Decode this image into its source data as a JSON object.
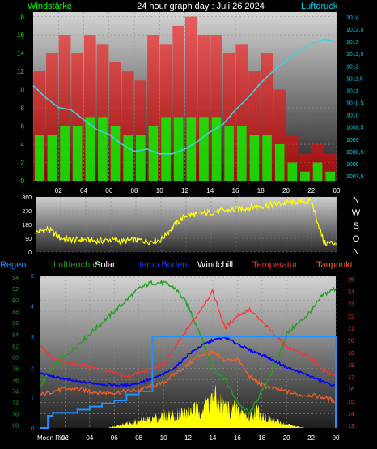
{
  "colors": {
    "wind_speed": "#00ff00",
    "wind_gust": "#ff0000",
    "pressure": "#40d0e0",
    "direction": "#ffff00",
    "humidity": "#20a020",
    "solar": "#ffff00",
    "temp_ground": "#0000ff",
    "windchill": "#ffffff",
    "temperature": "#ff3030",
    "dewpoint": "#ff6020",
    "rain": "#1e90ff",
    "panel_top": "#d0d0d0",
    "panel_bottom": "#202020"
  },
  "header": {
    "left_label": "Windstärke",
    "title": "24 hour graph day : Juli 26 2024",
    "right_label": "Luftdruck"
  },
  "compass": {
    "labels": [
      "N",
      "W",
      "S",
      "O",
      "N"
    ]
  },
  "legend": {
    "rain": "Regen",
    "humidity": "Luftfeuchte",
    "solar": "Solar",
    "temp_ground": "temp Boden",
    "windchill": "Windchill",
    "temperature": "Temperatur",
    "dewpoint": "Taupunkt"
  },
  "moon_label": "Moon Rise",
  "chart_data": [
    {
      "type": "bar",
      "name": "wind",
      "x_ticks": [
        "02",
        "04",
        "06",
        "08",
        "10",
        "12",
        "14",
        "16",
        "18",
        "20",
        "22",
        "00"
      ],
      "y_left_ticks": [
        "0",
        "2",
        "4",
        "6",
        "8",
        "10",
        "12",
        "14",
        "16",
        "18"
      ],
      "y_right_ticks": [
        "1007,5",
        "1008",
        "1008,5",
        "1009",
        "1009,5",
        "1010",
        "1010,5",
        "1011",
        "1011,5",
        "1012",
        "1012,5",
        "1013",
        "1013,5",
        "1014"
      ],
      "xlim": [
        0,
        24
      ],
      "ylim_left": [
        0,
        18.5
      ],
      "ylim_right": [
        1007.3,
        1014.2
      ],
      "series": [
        {
          "key": "gust",
          "x": [
            0.5,
            1.5,
            2.5,
            3.5,
            4.5,
            5.5,
            6.5,
            7.5,
            8.5,
            9.5,
            10.5,
            11.5,
            12.5,
            13.5,
            14.5,
            15.5,
            16.5,
            17.5,
            18.5,
            19.5,
            20.5,
            21.5,
            22.5,
            23.5
          ],
          "values": [
            12,
            14,
            16,
            14,
            16,
            15,
            13,
            12,
            11,
            16,
            15,
            17,
            18,
            16,
            16,
            14,
            15,
            12,
            14,
            10,
            5,
            3,
            4,
            3
          ]
        },
        {
          "key": "speed",
          "x": [
            0.5,
            1.5,
            2.5,
            3.5,
            4.5,
            5.5,
            6.5,
            7.5,
            8.5,
            9.5,
            10.5,
            11.5,
            12.5,
            13.5,
            14.5,
            15.5,
            16.5,
            17.5,
            18.5,
            19.5,
            20.5,
            21.5,
            22.5,
            23.5
          ],
          "values": [
            5,
            5,
            6,
            6,
            7,
            7,
            6,
            5,
            5,
            6,
            7,
            7,
            7,
            7,
            7,
            6,
            6,
            5,
            5,
            4,
            2,
            1,
            2,
            1
          ]
        },
        {
          "key": "pressure",
          "x": [
            0,
            1,
            2,
            3,
            4,
            5,
            6,
            7,
            8,
            9,
            10,
            11,
            12,
            13,
            14,
            15,
            16,
            17,
            18,
            19,
            20,
            21,
            22,
            23,
            24
          ],
          "values": [
            1011.2,
            1010.7,
            1010.3,
            1010.2,
            1009.8,
            1009.4,
            1009.2,
            1008.8,
            1008.5,
            1008.6,
            1008.4,
            1008.4,
            1008.6,
            1008.9,
            1009.3,
            1009.6,
            1010.2,
            1010.7,
            1011.3,
            1011.8,
            1012.2,
            1012.6,
            1012.9,
            1013.1,
            1013.0
          ]
        }
      ]
    },
    {
      "type": "line",
      "name": "wind_direction",
      "y_ticks": [
        "0",
        "90",
        "180",
        "270",
        "360"
      ],
      "ylim": [
        0,
        360
      ],
      "xlim": [
        0,
        24
      ],
      "x": [
        0,
        1,
        2,
        3,
        4,
        5,
        6,
        7,
        8,
        9,
        10,
        11,
        12,
        13,
        14,
        15,
        16,
        17,
        18,
        19,
        20,
        21,
        22,
        23,
        24
      ],
      "values": [
        130,
        150,
        90,
        80,
        80,
        70,
        80,
        70,
        80,
        70,
        80,
        170,
        240,
        250,
        260,
        270,
        280,
        290,
        300,
        310,
        320,
        330,
        330,
        60,
        60
      ]
    },
    {
      "type": "line",
      "name": "weather",
      "x_ticks": [
        "02",
        "04",
        "06",
        "08",
        "10",
        "12",
        "14",
        "16",
        "18",
        "20",
        "22",
        "00"
      ],
      "y_left_ticks": [
        "68",
        "70",
        "72",
        "74",
        "76",
        "78",
        "80",
        "82",
        "84",
        "86",
        "88",
        "90",
        "92",
        "94"
      ],
      "y_right_ticks": [
        "13",
        "14",
        "15",
        "16",
        "17",
        "18",
        "19",
        "20",
        "21",
        "22",
        "23",
        "24",
        "25"
      ],
      "y_rain_ticks": [
        "0",
        "1",
        "2",
        "3",
        "4",
        "5"
      ],
      "xlim": [
        0,
        24
      ],
      "ylim_left": [
        67.5,
        94.3
      ],
      "ylim_right": [
        12.8,
        25.3
      ],
      "series": [
        {
          "key": "humidity",
          "axis": "left",
          "x": [
            0,
            1,
            2,
            3,
            4,
            5,
            6,
            7,
            8,
            9,
            10,
            11,
            12,
            13,
            14,
            15,
            16,
            17,
            18,
            19,
            20,
            21,
            22,
            23,
            24
          ],
          "values": [
            75,
            78,
            80,
            82,
            84,
            86,
            88,
            90,
            92,
            93,
            93,
            92,
            89,
            84,
            78,
            76,
            72,
            70,
            74,
            78,
            84,
            86,
            88,
            91,
            92
          ]
        },
        {
          "key": "temperature",
          "axis": "right",
          "x": [
            0,
            1,
            2,
            3,
            4,
            5,
            6,
            7,
            8,
            9,
            10,
            11,
            12,
            13,
            14,
            15,
            16,
            17,
            18,
            19,
            20,
            21,
            22,
            23,
            24
          ],
          "values": [
            19.5,
            18.5,
            18.2,
            18.0,
            17.8,
            17.6,
            17.3,
            17.0,
            17.3,
            17.6,
            18.0,
            19.5,
            21.0,
            22.5,
            24.0,
            21.0,
            22.0,
            22.5,
            21.5,
            20.5,
            19.5,
            19.0,
            18.5,
            17.5,
            17.0
          ]
        },
        {
          "key": "temp_ground",
          "axis": "right",
          "x": [
            0,
            1,
            2,
            3,
            4,
            5,
            6,
            7,
            8,
            9,
            10,
            11,
            12,
            13,
            14,
            15,
            16,
            17,
            18,
            19,
            20,
            21,
            22,
            23,
            24
          ],
          "values": [
            17.3,
            17.0,
            16.8,
            16.6,
            16.5,
            16.4,
            16.3,
            16.3,
            16.5,
            16.8,
            17.2,
            17.8,
            18.8,
            19.5,
            20.0,
            20.2,
            19.7,
            19.2,
            18.8,
            18.3,
            17.8,
            17.4,
            17.0,
            16.6,
            16.2
          ]
        },
        {
          "key": "dewpoint",
          "axis": "right",
          "x": [
            0,
            1,
            2,
            3,
            4,
            5,
            6,
            7,
            8,
            9,
            10,
            11,
            12,
            13,
            14,
            15,
            16,
            17,
            18,
            19,
            20,
            21,
            22,
            23,
            24
          ],
          "values": [
            15.5,
            15.8,
            16.0,
            16.0,
            15.8,
            15.7,
            15.7,
            15.8,
            15.9,
            16.2,
            16.5,
            17.3,
            18.0,
            18.8,
            19.0,
            18.3,
            18.5,
            17.0,
            16.3,
            16.0,
            15.8,
            15.5,
            15.5,
            15.3,
            15.0
          ]
        },
        {
          "key": "rain",
          "axis": "rain",
          "x": [
            0,
            0.6,
            1.0,
            2.0,
            3.0,
            4.0,
            5.0,
            6.0,
            7.0,
            8.0,
            8.9,
            9.1,
            12.0,
            16.0,
            20.0,
            24.0
          ],
          "values": [
            0,
            0.4,
            0.5,
            0.5,
            0.6,
            0.7,
            0.8,
            0.9,
            1.1,
            1.2,
            1.2,
            3.0,
            3.0,
            3.0,
            3.0,
            3.0
          ]
        },
        {
          "key": "solar",
          "axis": "solar",
          "x": [
            0,
            5.5,
            6,
            7,
            8,
            9,
            10,
            11,
            12,
            13,
            13.5,
            14,
            14.5,
            15,
            15.5,
            16,
            16.5,
            17,
            17.5,
            18,
            18.5,
            19,
            19.5,
            20,
            21,
            21.5,
            24
          ],
          "values": [
            0,
            0,
            2,
            5,
            8,
            10,
            14,
            16,
            18,
            22,
            28,
            34,
            30,
            24,
            20,
            22,
            18,
            12,
            20,
            16,
            10,
            8,
            6,
            4,
            1,
            0,
            0
          ]
        }
      ]
    }
  ]
}
